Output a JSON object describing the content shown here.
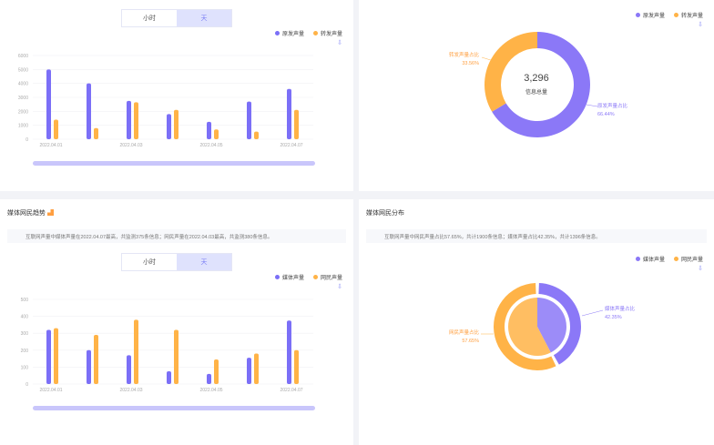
{
  "toggle": {
    "hour": "小时",
    "day": "天"
  },
  "chart_data": [
    {
      "type": "bar",
      "categories": [
        "2022.04.01",
        "2022.04.02",
        "2022.04.03",
        "2022.04.04",
        "2022.04.05",
        "2022.04.06",
        "2022.04.07"
      ],
      "tick_labels": [
        "2022.04.01",
        "2022.04.03",
        "2022.04.05",
        "2022.04.07"
      ],
      "ylim": [
        0,
        6000
      ],
      "yticks": [
        0,
        1000,
        2000,
        3000,
        4000,
        5000,
        6000
      ],
      "series": [
        {
          "name": "原发声量",
          "values": [
            5000,
            4000,
            2750,
            1800,
            1250,
            2700,
            3600
          ],
          "color": "#7b6ff7"
        },
        {
          "name": "转发声量",
          "values": [
            1400,
            800,
            2650,
            2100,
            700,
            550,
            2100
          ],
          "color": "#ffb347"
        }
      ]
    },
    {
      "type": "pie",
      "center_value": "3,296",
      "center_label": "信息总量",
      "series": [
        {
          "name": "原发声量",
          "label": "原发声量占比",
          "value": 66.44,
          "display": "66.44%",
          "color": "#8b78f7"
        },
        {
          "name": "转发声量",
          "label": "转发声量占比",
          "value": 33.56,
          "display": "33.56%",
          "color": "#ffb347"
        }
      ]
    },
    {
      "type": "bar",
      "categories": [
        "2022.04.01",
        "2022.04.02",
        "2022.04.03",
        "2022.04.04",
        "2022.04.05",
        "2022.04.06",
        "2022.04.07"
      ],
      "tick_labels": [
        "2022.04.01",
        "2022.04.03",
        "2022.04.05",
        "2022.04.07"
      ],
      "ylim": [
        0,
        500
      ],
      "yticks": [
        0,
        100,
        200,
        300,
        400,
        500
      ],
      "series": [
        {
          "name": "媒体声量",
          "values": [
            320,
            200,
            170,
            75,
            60,
            155,
            375
          ],
          "color": "#7b6ff7"
        },
        {
          "name": "网民声量",
          "values": [
            330,
            290,
            380,
            320,
            145,
            180,
            200
          ],
          "color": "#ffb347"
        }
      ]
    },
    {
      "type": "pie",
      "series": [
        {
          "name": "媒体声量",
          "label": "媒体声量占比",
          "value": 42.35,
          "display": "42.35%",
          "color": "#8b78f7"
        },
        {
          "name": "网民声量",
          "label": "网民声量占比",
          "value": 57.65,
          "display": "57.65%",
          "color": "#ffb347"
        }
      ]
    }
  ],
  "panel3": {
    "title": "媒体网民趋势",
    "summary": "互联网声量中媒体声量在2022.04.07最高，共监测375条信息；网民声量在2022.04.03最高，共监测380条信息。"
  },
  "panel4": {
    "title": "媒体网民分布",
    "summary": "互联网声量中网民声量占比57.65%，共计1900条信息；媒体声量占比42.35%，共计1396条信息。"
  },
  "download_icon": "download-icon"
}
